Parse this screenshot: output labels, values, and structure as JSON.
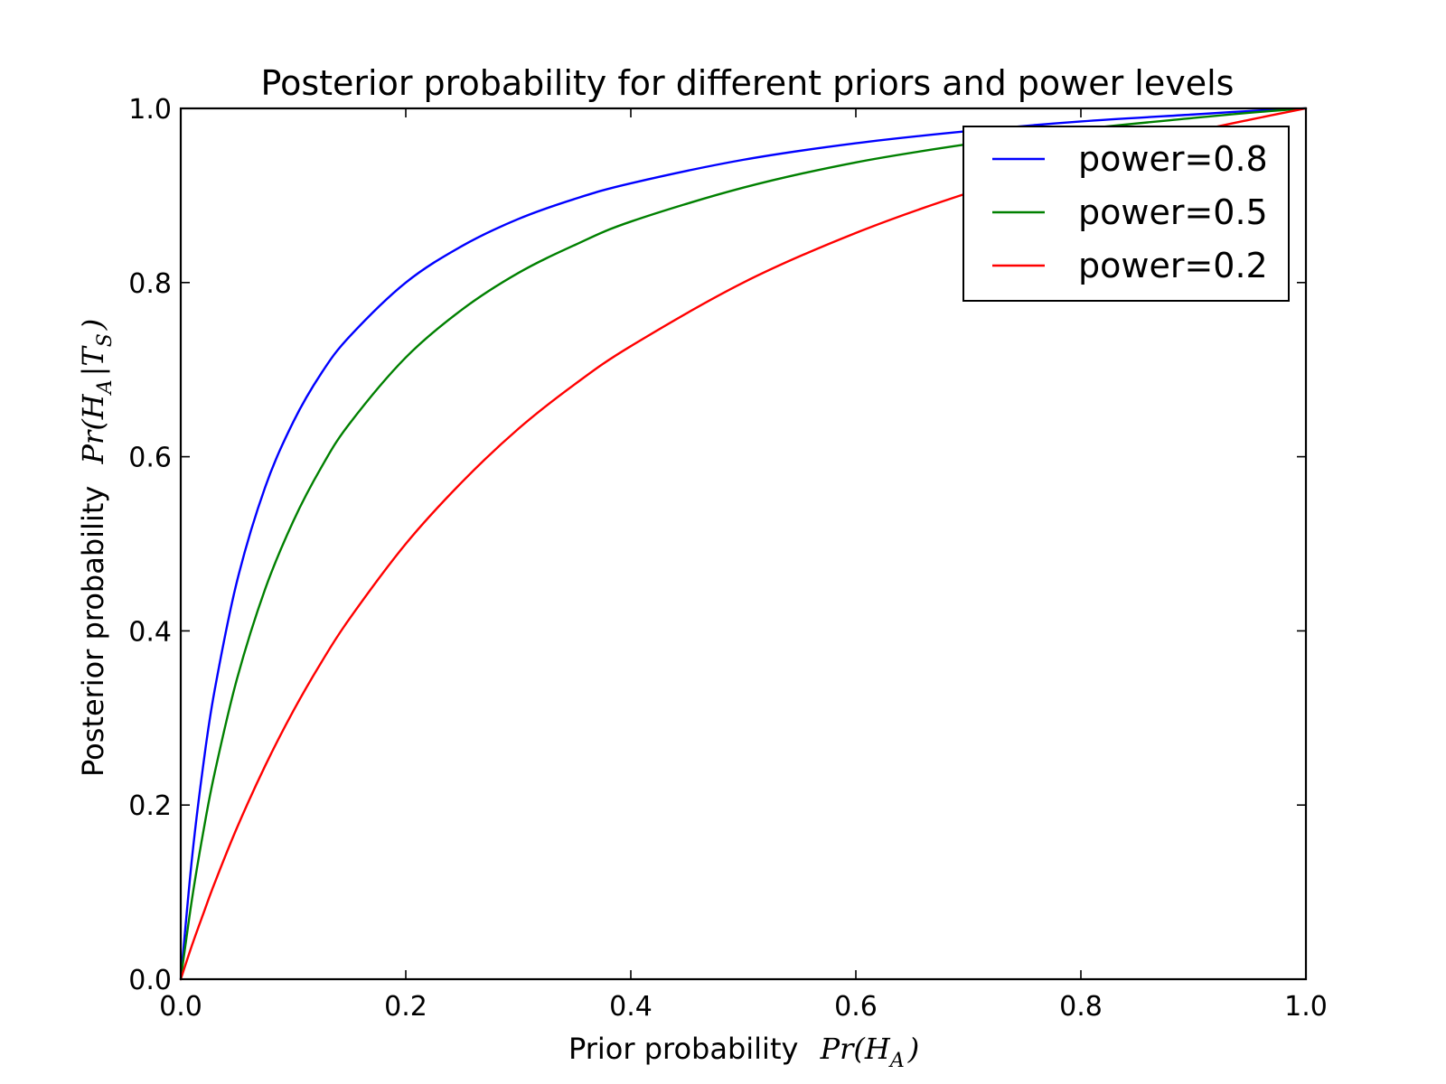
{
  "chart_data": {
    "type": "line",
    "title": "Posterior probability for different priors and power levels",
    "xlabel": {
      "text": "Prior probability",
      "math": "Pr(H",
      "math_sub": "A",
      "math_end": ")"
    },
    "ylabel": {
      "text": "Posterior probability",
      "math": "Pr(H",
      "math_sub": "A",
      "math_mid": "|T",
      "math_sub2": "S",
      "math_end": ")"
    },
    "xlim": [
      0,
      1
    ],
    "ylim": [
      0,
      1
    ],
    "xticks": [
      "0.0",
      "0.2",
      "0.4",
      "0.6",
      "0.8",
      "1.0"
    ],
    "yticks": [
      "0.0",
      "0.2",
      "0.4",
      "0.6",
      "0.8",
      "1.0"
    ],
    "grid": false,
    "legend_position": "top-right",
    "x": [
      0.0,
      0.01,
      0.02,
      0.03,
      0.05,
      0.075,
      0.1,
      0.125,
      0.15,
      0.2,
      0.25,
      0.3,
      0.35,
      0.4,
      0.5,
      0.6,
      0.7,
      0.8,
      0.9,
      0.95,
      1.0
    ],
    "series": [
      {
        "name": "power=0.8",
        "color": "#0000ff",
        "values": [
          0.0,
          0.139,
          0.246,
          0.331,
          0.457,
          0.565,
          0.64,
          0.696,
          0.738,
          0.8,
          0.842,
          0.873,
          0.896,
          0.914,
          0.941,
          0.96,
          0.974,
          0.985,
          0.993,
          0.997,
          1.0
        ]
      },
      {
        "name": "power=0.5",
        "color": "#008000",
        "values": [
          0.0,
          0.092,
          0.169,
          0.236,
          0.345,
          0.448,
          0.526,
          0.588,
          0.638,
          0.714,
          0.769,
          0.811,
          0.843,
          0.87,
          0.909,
          0.938,
          0.959,
          0.976,
          0.989,
          0.995,
          1.0
        ]
      },
      {
        "name": "power=0.2",
        "color": "#ff0000",
        "values": [
          0.0,
          0.039,
          0.075,
          0.11,
          0.174,
          0.245,
          0.308,
          0.364,
          0.414,
          0.5,
          0.571,
          0.632,
          0.683,
          0.727,
          0.8,
          0.857,
          0.903,
          0.941,
          0.973,
          0.987,
          1.0
        ]
      }
    ]
  }
}
